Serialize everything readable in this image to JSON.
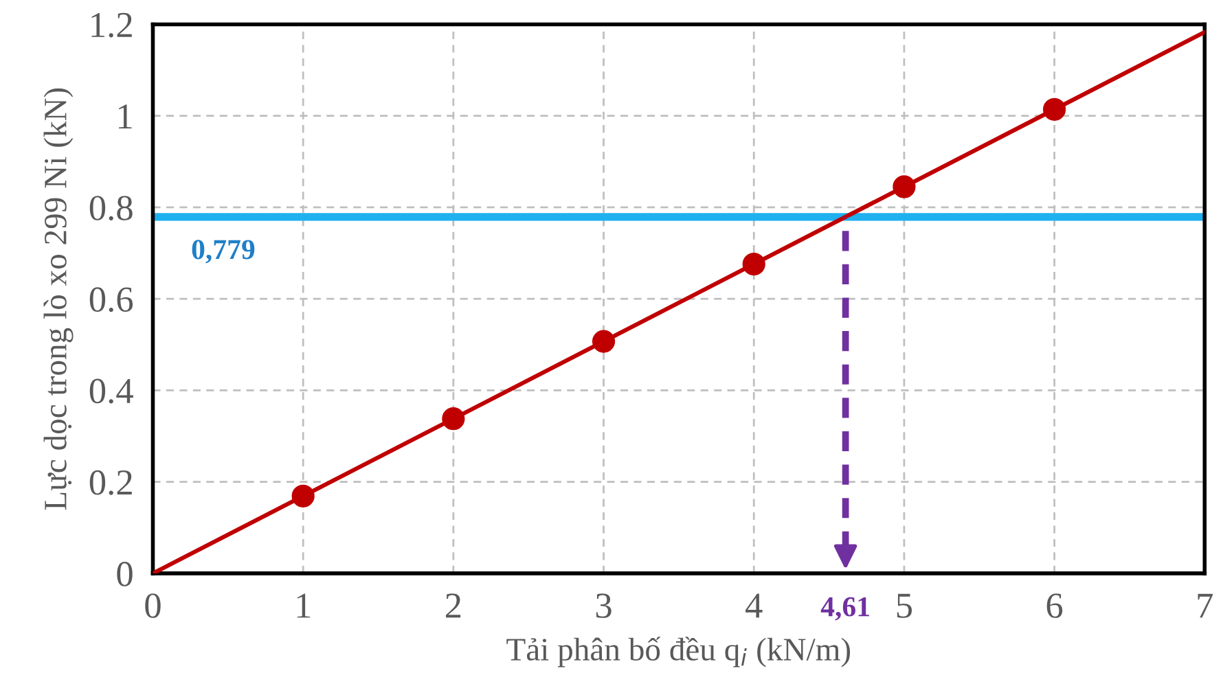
{
  "chart_data": {
    "type": "scatter",
    "xlabel": "Tải phân bố đều q$_{i}$ (kN/m)",
    "ylabel": "Lực dọc trong lò xo 299 Ni (kN)",
    "x": [
      1,
      2,
      3,
      4,
      5,
      6
    ],
    "series": [
      {
        "type": "line",
        "x": [
          0,
          7
        ],
        "values": [
          0,
          1.183
        ],
        "color": "#c00000",
        "marker": "none"
      },
      {
        "values": [
          0.169,
          0.338,
          0.507,
          0.676,
          0.845,
          1.014
        ],
        "color": "#c00000",
        "marker": "circle"
      }
    ],
    "xlim": [
      0,
      7
    ],
    "xticks": [
      0,
      1,
      2,
      3,
      4,
      5,
      6,
      7
    ],
    "ylim": [
      0,
      1.2
    ],
    "yticks": [
      0,
      0.2,
      0.4,
      0.6,
      0.8,
      1,
      1.2
    ],
    "grid": true,
    "legend": false,
    "ref_lines": [
      {
        "axis": "y",
        "value": 0.779,
        "label": "0,779",
        "color": "#1fb0f0"
      },
      {
        "axis": "x",
        "value": 4.61,
        "label": "4,61",
        "color": "#7030a0",
        "line_style": "dashed"
      }
    ]
  }
}
